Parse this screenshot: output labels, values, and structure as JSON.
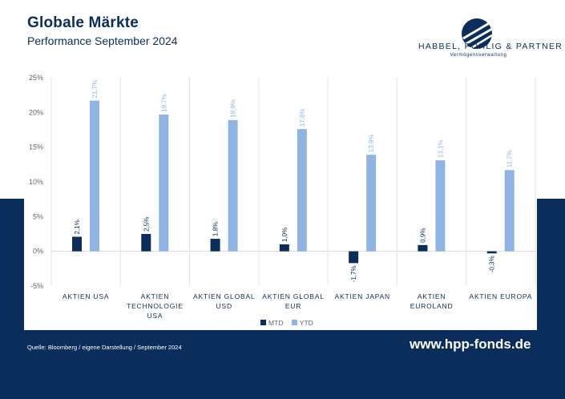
{
  "header": {
    "title": "Globale Märkte",
    "subtitle": "Performance September 2024"
  },
  "logo": {
    "name": "HABBEL, POHLIG & PARTNER",
    "tagline": "Vermögensverwaltung"
  },
  "footer": {
    "source": "Quelle: Bloomberg / eigene Darstellung / September 2024",
    "website": "www.hpp-fonds.de"
  },
  "colors": {
    "mtd": "#0b2d5b",
    "ytd": "#8fb3e3",
    "navy": "#0b2d5b"
  },
  "chart_data": {
    "type": "bar",
    "categories": [
      [
        "AKTIEN USA"
      ],
      [
        "AKTIEN",
        "TECHNOLOGIE",
        "USA"
      ],
      [
        "AKTIEN GLOBAL",
        "USD"
      ],
      [
        "AKTIEN GLOBAL",
        "EUR"
      ],
      [
        "AKTIEN JAPAN"
      ],
      [
        "AKTIEN",
        "EUROLAND"
      ],
      [
        "AKTIEN EUROPA"
      ]
    ],
    "series": [
      {
        "name": "MTD",
        "values": [
          2.1,
          2.5,
          1.8,
          1.0,
          -1.7,
          0.9,
          -0.3
        ],
        "labels": [
          "2,1%",
          "2,5%",
          "1,8%",
          "1,0%",
          "-1,7%",
          "0,9%",
          "-0,3%"
        ]
      },
      {
        "name": "YTD",
        "values": [
          21.7,
          19.7,
          18.9,
          17.6,
          13.9,
          13.1,
          11.7
        ],
        "labels": [
          "21,7%",
          "19,7%",
          "18,9%",
          "17,6%",
          "13,9%",
          "13,1%",
          "11,7%"
        ]
      }
    ],
    "yticks": [
      25,
      20,
      15,
      10,
      5,
      0,
      -5
    ],
    "ytick_labels": [
      "25%",
      "20%",
      "15%",
      "10%",
      "5%",
      "0%",
      "-5%"
    ],
    "ylim": [
      -5,
      25
    ],
    "grid": "vertical separators between categories",
    "legend": "bottom-center"
  }
}
